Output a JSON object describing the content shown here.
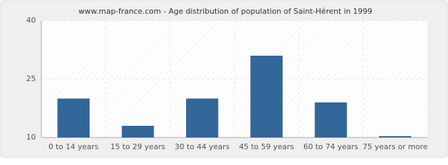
{
  "chart_data": {
    "type": "bar",
    "title": "www.map-france.com - Age distribution of population of Saint-Hérent in 1999",
    "categories": [
      "0 to 14 years",
      "15 to 29 years",
      "30 to 44 years",
      "45 to 59 years",
      "60 to 74 years",
      "75 years or more"
    ],
    "values": [
      20,
      13,
      20,
      31,
      19,
      10
    ],
    "color": "#336699",
    "ylim": [
      10,
      40
    ],
    "yticks": [
      10,
      25,
      40
    ],
    "grid": true
  }
}
